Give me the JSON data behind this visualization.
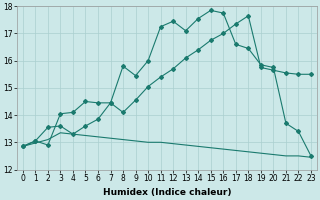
{
  "xlabel": "Humidex (Indice chaleur)",
  "bg_color": "#cce8e8",
  "line_color": "#1a7a6e",
  "grid_color": "#aacfcf",
  "xlim": [
    -0.5,
    23.5
  ],
  "ylim": [
    12,
    18
  ],
  "xticks": [
    0,
    1,
    2,
    3,
    4,
    5,
    6,
    7,
    8,
    9,
    10,
    11,
    12,
    13,
    14,
    15,
    16,
    17,
    18,
    19,
    20,
    21,
    22,
    23
  ],
  "yticks": [
    12,
    13,
    14,
    15,
    16,
    17,
    18
  ],
  "line1_x": [
    0,
    1,
    2,
    3,
    4,
    5,
    6,
    7,
    8,
    9,
    10,
    11,
    12,
    13,
    14,
    15,
    16,
    17,
    18,
    19,
    20,
    21,
    22,
    23
  ],
  "line1_y": [
    12.85,
    13.05,
    12.9,
    14.05,
    14.1,
    14.5,
    14.45,
    14.45,
    15.8,
    15.45,
    16.0,
    17.25,
    17.45,
    17.1,
    17.55,
    17.85,
    17.75,
    16.6,
    16.45,
    15.85,
    15.75,
    13.7,
    13.4,
    12.5
  ],
  "line2_x": [
    0,
    1,
    2,
    3,
    4,
    5,
    6,
    7,
    8,
    9,
    10,
    11,
    12,
    13,
    14,
    15,
    16,
    17,
    18,
    19,
    20,
    21,
    22,
    23
  ],
  "line2_y": [
    12.85,
    13.05,
    13.55,
    13.6,
    13.3,
    13.6,
    13.85,
    14.45,
    14.1,
    14.55,
    15.05,
    15.4,
    15.7,
    16.1,
    16.4,
    16.75,
    17.0,
    17.35,
    17.65,
    15.75,
    15.65,
    15.55,
    15.5,
    15.5
  ],
  "line3_x": [
    0,
    2,
    3,
    4,
    5,
    6,
    7,
    8,
    9,
    10,
    11,
    12,
    13,
    14,
    15,
    16,
    17,
    18,
    19,
    20,
    21,
    22,
    23
  ],
  "line3_y": [
    12.85,
    13.1,
    13.35,
    13.3,
    13.25,
    13.2,
    13.15,
    13.1,
    13.05,
    13.0,
    13.0,
    12.95,
    12.9,
    12.85,
    12.8,
    12.75,
    12.7,
    12.65,
    12.6,
    12.55,
    12.5,
    12.5,
    12.45
  ],
  "marker": "D",
  "markersize": 2.0,
  "linewidth": 0.8,
  "label_fontsize": 6.5,
  "tick_fontsize": 5.5
}
